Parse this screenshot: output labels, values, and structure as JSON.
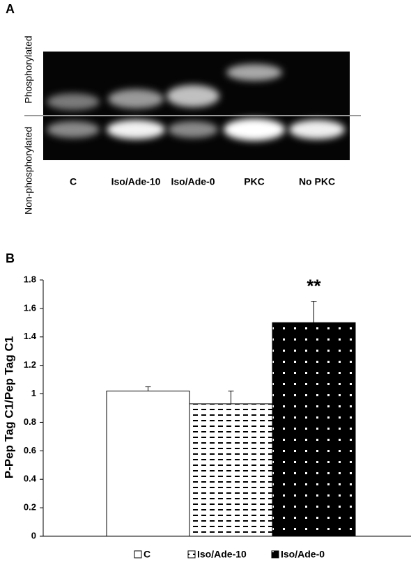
{
  "panel_a": {
    "label": "A",
    "side_labels": [
      "Phosphorylated",
      "Non-phosphorylated"
    ],
    "lanes": [
      "C",
      "Iso/Ade-10",
      "Iso/Ade-0",
      "PKC",
      "No PKC"
    ]
  },
  "chart_data": {
    "type": "bar",
    "panel_label": "B",
    "y_label": "P-Pep Tag C1/Pep Tag C1",
    "ylim": [
      0,
      1.8
    ],
    "yticks": [
      0,
      0.2,
      0.4,
      0.6,
      0.8,
      1,
      1.2,
      1.4,
      1.6,
      1.8
    ],
    "series": [
      {
        "name": "C",
        "color": "#ffffff",
        "pattern": "none",
        "values": [
          1.02
        ],
        "errors": [
          0.03
        ]
      },
      {
        "name": "Iso/Ade-10",
        "color": "#ffffff",
        "pattern": "dashes",
        "values": [
          0.93
        ],
        "errors": [
          0.09
        ]
      },
      {
        "name": "Iso/Ade-0",
        "color": "#000000",
        "pattern": "dots",
        "values": [
          1.5
        ],
        "errors": [
          0.15
        ]
      }
    ],
    "annotations": [
      {
        "text": "**",
        "series": 2
      }
    ]
  }
}
